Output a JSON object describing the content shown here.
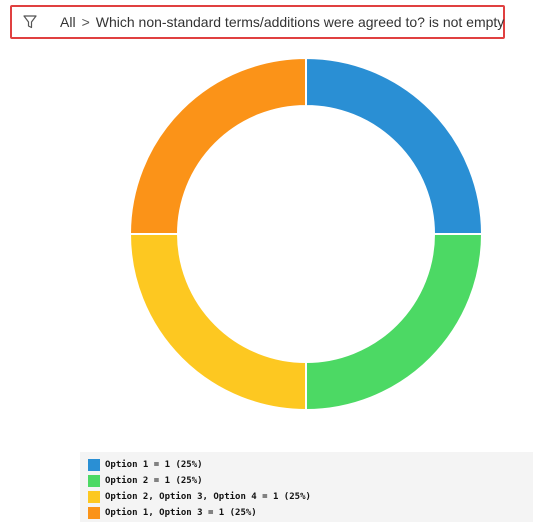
{
  "filter": {
    "icon": "funnel-icon",
    "root": "All",
    "separator": ">",
    "condition": "Which non-standard terms/additions were agreed to? is not empty"
  },
  "chart_data": {
    "type": "pie",
    "variant": "donut",
    "title": "",
    "slices": [
      {
        "label": "Option 1",
        "value": 1,
        "percent": 25,
        "color": "#2a8fd4",
        "legend_text": "Option 1 = 1 (25%)"
      },
      {
        "label": "Option 2",
        "value": 1,
        "percent": 25,
        "color": "#4cd964",
        "legend_text": "Option 2 = 1 (25%)"
      },
      {
        "label": "Option 2, Option 3, Option 4",
        "value": 1,
        "percent": 25,
        "color": "#fdc821",
        "legend_text": "Option 2, Option 3, Option 4 = 1 (25%)"
      },
      {
        "label": "Option 1, Option 3",
        "value": 1,
        "percent": 25,
        "color": "#fb9318",
        "legend_text": "Option 1, Option 3 = 1 (25%)"
      }
    ],
    "legend_position": "bottom"
  }
}
